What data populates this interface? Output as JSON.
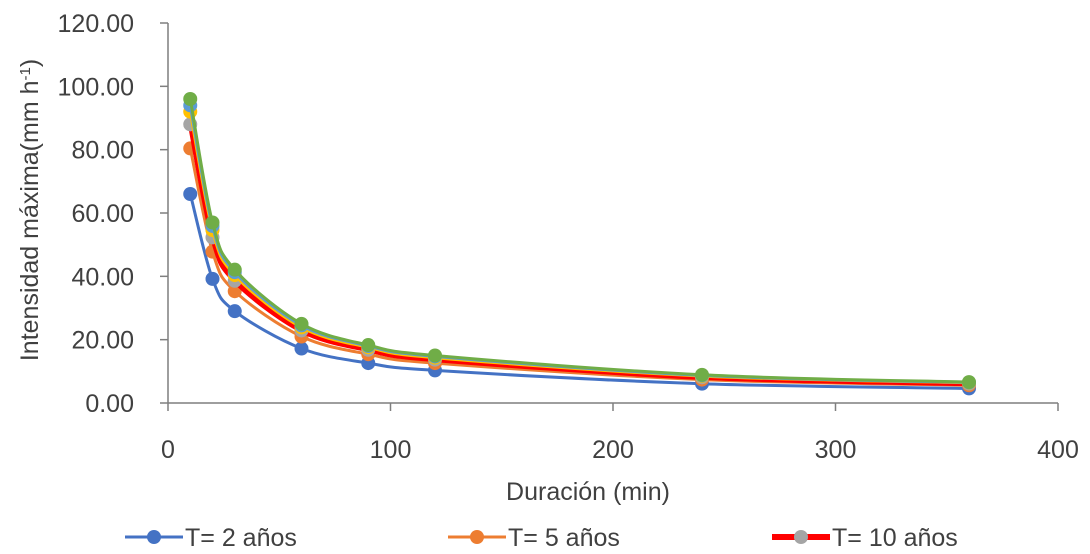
{
  "chart_data": {
    "type": "scatter",
    "title": "",
    "xlabel": "Duración (min)",
    "ylabel": "Intensidad máxima(mm h",
    "ylabel_sup": "-1",
    "ylabel_close": ")",
    "xlim": [
      0,
      400
    ],
    "ylim": [
      0,
      120
    ],
    "x_ticks": [
      "0",
      "100",
      "200",
      "300",
      "400"
    ],
    "y_ticks": [
      "0.00",
      "20.00",
      "40.00",
      "60.00",
      "80.00",
      "100.00",
      "120.00"
    ],
    "grid": false,
    "legend_position": "bottom",
    "x": [
      10,
      20,
      30,
      60,
      90,
      120,
      240,
      360
    ],
    "series": [
      {
        "name": "T= 2 años",
        "color": "#4472C4",
        "values": [
          66.0,
          39.2,
          29.0,
          17.2,
          12.6,
          10.3,
          6.1,
          4.6
        ]
      },
      {
        "name": "T= 5 años",
        "color": "#ED7D31",
        "values": [
          80.4,
          47.8,
          35.3,
          21.0,
          15.4,
          12.6,
          7.4,
          5.6
        ]
      },
      {
        "name": "T= 10 años",
        "color": "#A5A5A5",
        "values": [
          88.0,
          52.3,
          38.6,
          22.9,
          16.8,
          13.7,
          8.1,
          6.1
        ]
      },
      {
        "name": "",
        "color": "#FFC000",
        "values": [
          92.0,
          54.6,
          40.4,
          23.9,
          17.6,
          14.3,
          8.5,
          6.4
        ]
      },
      {
        "name": "",
        "color": "#5B9BD5",
        "values": [
          94.0,
          55.9,
          41.3,
          24.5,
          18.0,
          14.7,
          8.7,
          6.5
        ]
      },
      {
        "name": "",
        "color": "#70AD47",
        "values": [
          96.0,
          57.0,
          42.1,
          25.0,
          18.3,
          15.0,
          8.9,
          6.6
        ]
      }
    ],
    "fit_line_color": "#FF0000",
    "legend_items": [
      "T= 2 años",
      "T= 5 años",
      "T= 10 años"
    ]
  }
}
